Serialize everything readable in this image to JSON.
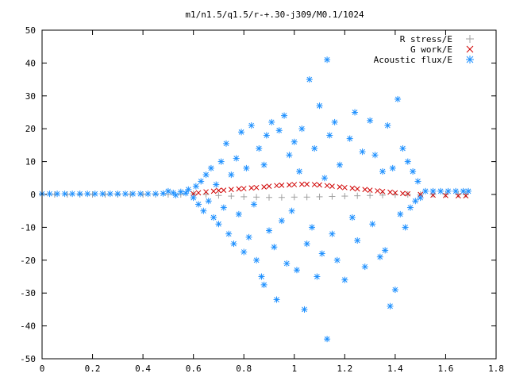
{
  "chart_data": {
    "type": "scatter",
    "title": "m1/n1.5/q1.5/r-+.30-j309/M0.1/1024",
    "xlabel": "",
    "ylabel": "",
    "xlim": [
      0,
      1.8
    ],
    "ylim": [
      -50,
      50
    ],
    "x_ticks": [
      "0",
      "0.2",
      "0.4",
      "0.6",
      "0.8",
      "1",
      "1.2",
      "1.4",
      "1.6",
      "1.8"
    ],
    "y_ticks": [
      "50",
      "40",
      "30",
      "20",
      "10",
      "0",
      "-10",
      "-20",
      "-30",
      "-40",
      "-50"
    ],
    "grid": false,
    "legend_position": "top-right",
    "series": [
      {
        "name": "R stress/E",
        "marker": "plus",
        "color": "#a0a0a0",
        "points": [
          [
            0.0,
            0
          ],
          [
            0.05,
            0
          ],
          [
            0.1,
            0
          ],
          [
            0.15,
            0
          ],
          [
            0.2,
            0
          ],
          [
            0.25,
            0
          ],
          [
            0.3,
            0
          ],
          [
            0.35,
            0
          ],
          [
            0.4,
            0
          ],
          [
            0.45,
            0
          ],
          [
            0.5,
            0
          ],
          [
            0.55,
            0
          ],
          [
            0.6,
            0.2
          ],
          [
            0.65,
            0.0
          ],
          [
            0.7,
            -0.3
          ],
          [
            0.75,
            -0.5
          ],
          [
            0.8,
            -0.7
          ],
          [
            0.85,
            -0.8
          ],
          [
            0.9,
            -0.9
          ],
          [
            0.95,
            -0.9
          ],
          [
            1.0,
            -0.8
          ],
          [
            1.05,
            -0.8
          ],
          [
            1.1,
            -0.7
          ],
          [
            1.15,
            -0.6
          ],
          [
            1.2,
            -0.5
          ],
          [
            1.25,
            -0.4
          ],
          [
            1.3,
            -0.3
          ],
          [
            1.35,
            -0.2
          ],
          [
            1.4,
            -0.1
          ],
          [
            1.45,
            0
          ],
          [
            1.5,
            0
          ],
          [
            1.55,
            0
          ],
          [
            1.6,
            0
          ],
          [
            1.65,
            0
          ],
          [
            1.68,
            0
          ]
        ]
      },
      {
        "name": "G work/E",
        "marker": "cross",
        "color": "#d00000",
        "points": [
          [
            0.6,
            0.2
          ],
          [
            0.62,
            0.5
          ],
          [
            0.65,
            0.8
          ],
          [
            0.68,
            1.0
          ],
          [
            0.7,
            1.2
          ],
          [
            0.72,
            1.3
          ],
          [
            0.75,
            1.5
          ],
          [
            0.78,
            1.7
          ],
          [
            0.8,
            1.8
          ],
          [
            0.83,
            2.0
          ],
          [
            0.85,
            2.1
          ],
          [
            0.88,
            2.3
          ],
          [
            0.9,
            2.5
          ],
          [
            0.93,
            2.7
          ],
          [
            0.95,
            2.8
          ],
          [
            0.98,
            2.9
          ],
          [
            1.0,
            3.0
          ],
          [
            1.03,
            3.1
          ],
          [
            1.05,
            3.1
          ],
          [
            1.08,
            3.0
          ],
          [
            1.1,
            2.9
          ],
          [
            1.13,
            2.7
          ],
          [
            1.15,
            2.5
          ],
          [
            1.18,
            2.3
          ],
          [
            1.2,
            2.1
          ],
          [
            1.23,
            1.9
          ],
          [
            1.25,
            1.7
          ],
          [
            1.28,
            1.5
          ],
          [
            1.3,
            1.3
          ],
          [
            1.33,
            1.1
          ],
          [
            1.35,
            0.9
          ],
          [
            1.38,
            0.7
          ],
          [
            1.4,
            0.5
          ],
          [
            1.43,
            0.3
          ],
          [
            1.45,
            0.2
          ],
          [
            1.5,
            0.0
          ],
          [
            1.55,
            -0.2
          ],
          [
            1.6,
            -0.3
          ],
          [
            1.65,
            -0.4
          ],
          [
            1.68,
            -0.4
          ]
        ]
      },
      {
        "name": "Acoustic flux/E",
        "marker": "star",
        "color": "#1e90ff",
        "points": [
          [
            0.0,
            0.2
          ],
          [
            0.03,
            0.2
          ],
          [
            0.06,
            0.2
          ],
          [
            0.09,
            0.2
          ],
          [
            0.12,
            0.2
          ],
          [
            0.15,
            0.2
          ],
          [
            0.18,
            0.2
          ],
          [
            0.21,
            0.2
          ],
          [
            0.24,
            0.2
          ],
          [
            0.27,
            0.2
          ],
          [
            0.3,
            0.2
          ],
          [
            0.33,
            0.2
          ],
          [
            0.36,
            0.2
          ],
          [
            0.39,
            0.2
          ],
          [
            0.42,
            0.2
          ],
          [
            0.45,
            0.2
          ],
          [
            0.48,
            0.3
          ],
          [
            0.5,
            1.0
          ],
          [
            0.52,
            0.5
          ],
          [
            0.53,
            -0.2
          ],
          [
            0.55,
            0.8
          ],
          [
            0.57,
            0.4
          ],
          [
            0.58,
            1.5
          ],
          [
            0.6,
            -1.0
          ],
          [
            0.61,
            2.5
          ],
          [
            0.62,
            -3.0
          ],
          [
            0.63,
            4.0
          ],
          [
            0.64,
            -5.0
          ],
          [
            0.65,
            6.0
          ],
          [
            0.66,
            -2.0
          ],
          [
            0.67,
            8.0
          ],
          [
            0.68,
            -7.0
          ],
          [
            0.69,
            3.0
          ],
          [
            0.7,
            -9.0
          ],
          [
            0.71,
            10.0
          ],
          [
            0.72,
            -4.0
          ],
          [
            0.73,
            15.5
          ],
          [
            0.74,
            -12.0
          ],
          [
            0.75,
            6.0
          ],
          [
            0.76,
            -15.0
          ],
          [
            0.77,
            11.0
          ],
          [
            0.78,
            -6.0
          ],
          [
            0.79,
            19.0
          ],
          [
            0.8,
            -17.5
          ],
          [
            0.81,
            8.0
          ],
          [
            0.82,
            -13.0
          ],
          [
            0.83,
            21.0
          ],
          [
            0.84,
            -3.0
          ],
          [
            0.85,
            -20.0
          ],
          [
            0.86,
            14.0
          ],
          [
            0.87,
            -25.0
          ],
          [
            0.88,
            9.0
          ],
          [
            0.88,
            -27.5
          ],
          [
            0.89,
            18.0
          ],
          [
            0.9,
            -11.0
          ],
          [
            0.91,
            22.0
          ],
          [
            0.92,
            -16.0
          ],
          [
            0.93,
            -32.0
          ],
          [
            0.94,
            19.5
          ],
          [
            0.95,
            -8.0
          ],
          [
            0.96,
            24.0
          ],
          [
            0.97,
            -21.0
          ],
          [
            0.98,
            12.0
          ],
          [
            0.99,
            -5.0
          ],
          [
            1.0,
            16.0
          ],
          [
            1.01,
            -23.0
          ],
          [
            1.02,
            7.0
          ],
          [
            1.03,
            20.0
          ],
          [
            1.04,
            -35.0
          ],
          [
            1.05,
            -15.0
          ],
          [
            1.06,
            35.0
          ],
          [
            1.07,
            -10.0
          ],
          [
            1.08,
            14.0
          ],
          [
            1.09,
            -25.0
          ],
          [
            1.1,
            27.0
          ],
          [
            1.11,
            -18.0
          ],
          [
            1.12,
            5.0
          ],
          [
            1.13,
            41.0
          ],
          [
            1.13,
            -44.0
          ],
          [
            1.14,
            18.0
          ],
          [
            1.15,
            -12.0
          ],
          [
            1.16,
            22.0
          ],
          [
            1.17,
            -20.0
          ],
          [
            1.18,
            9.0
          ],
          [
            1.2,
            -26.0
          ],
          [
            1.22,
            17.0
          ],
          [
            1.23,
            -7.0
          ],
          [
            1.24,
            25.0
          ],
          [
            1.25,
            -14.0
          ],
          [
            1.27,
            13.0
          ],
          [
            1.28,
            -22.0
          ],
          [
            1.3,
            22.5
          ],
          [
            1.31,
            -9.0
          ],
          [
            1.32,
            12.0
          ],
          [
            1.34,
            -19.0
          ],
          [
            1.35,
            7.0
          ],
          [
            1.36,
            -17.0
          ],
          [
            1.37,
            21.0
          ],
          [
            1.38,
            -34.0
          ],
          [
            1.39,
            8.0
          ],
          [
            1.4,
            -29.0
          ],
          [
            1.41,
            29.0
          ],
          [
            1.42,
            -6.0
          ],
          [
            1.43,
            14.0
          ],
          [
            1.44,
            -10.0
          ],
          [
            1.45,
            10.0
          ],
          [
            1.46,
            -4.0
          ],
          [
            1.47,
            7.0
          ],
          [
            1.48,
            -2.0
          ],
          [
            1.49,
            4.0
          ],
          [
            1.5,
            -1.0
          ],
          [
            1.52,
            1.0
          ],
          [
            1.55,
            1.0
          ],
          [
            1.58,
            1.0
          ],
          [
            1.61,
            1.0
          ],
          [
            1.64,
            1.0
          ],
          [
            1.67,
            1.0
          ],
          [
            1.69,
            1.0
          ]
        ]
      }
    ]
  }
}
